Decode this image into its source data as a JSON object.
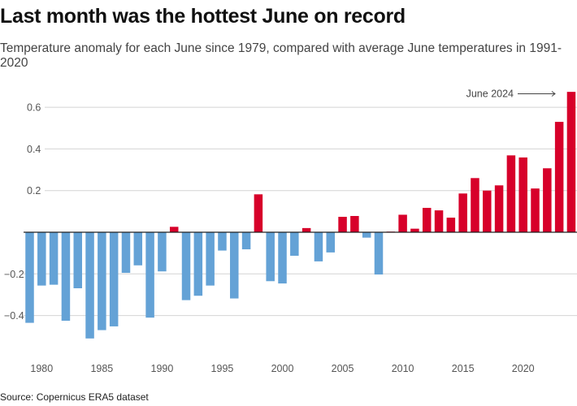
{
  "title": "Last month was the hottest June on record",
  "subtitle": "Temperature anomaly for each June since 1979, compared with average June temperatures in 1991-2020",
  "source": "Source: Copernicus ERA5 dataset",
  "chart_data": {
    "type": "bar",
    "title": "Last month was the hottest June on record",
    "xlabel": "",
    "ylabel": "",
    "ylim": [
      -0.55,
      0.75
    ],
    "grid": true,
    "colors": {
      "positive": "#d7002a",
      "negative": "#64a2d6"
    },
    "yticks": [
      -0.4,
      -0.2,
      0,
      0.2,
      0.4,
      0.6
    ],
    "ytick_labels": [
      "-0.4",
      "-0.2",
      "",
      "0.2",
      "0.4",
      "0.6"
    ],
    "xticks": [
      1980,
      1985,
      1990,
      1995,
      2000,
      2005,
      2010,
      2015,
      2020
    ],
    "xtick_labels": [
      "1980",
      "1985",
      "1990",
      "1995",
      "2000",
      "2005",
      "2010",
      "2015",
      "2020"
    ],
    "categories": [
      1979,
      1980,
      1981,
      1982,
      1983,
      1984,
      1985,
      1986,
      1987,
      1988,
      1989,
      1990,
      1991,
      1992,
      1993,
      1994,
      1995,
      1996,
      1997,
      1998,
      1999,
      2000,
      2001,
      2002,
      2003,
      2004,
      2005,
      2006,
      2007,
      2008,
      2009,
      2010,
      2011,
      2012,
      2013,
      2014,
      2015,
      2016,
      2017,
      2018,
      2019,
      2020,
      2021,
      2022,
      2023,
      2024
    ],
    "values": [
      -0.435,
      -0.256,
      -0.252,
      -0.425,
      -0.269,
      -0.51,
      -0.47,
      -0.452,
      -0.195,
      -0.159,
      -0.41,
      -0.188,
      0.026,
      -0.326,
      -0.305,
      -0.256,
      -0.088,
      -0.318,
      -0.082,
      0.182,
      -0.235,
      -0.246,
      -0.113,
      0.02,
      -0.14,
      -0.097,
      0.074,
      0.078,
      -0.026,
      -0.203,
      0.003,
      0.084,
      0.017,
      0.117,
      0.105,
      0.07,
      0.186,
      0.26,
      0.2,
      0.225,
      0.369,
      0.359,
      0.21,
      0.307,
      0.53,
      0.674
    ],
    "annotation": {
      "text": "June 2024",
      "target": 2024
    }
  }
}
